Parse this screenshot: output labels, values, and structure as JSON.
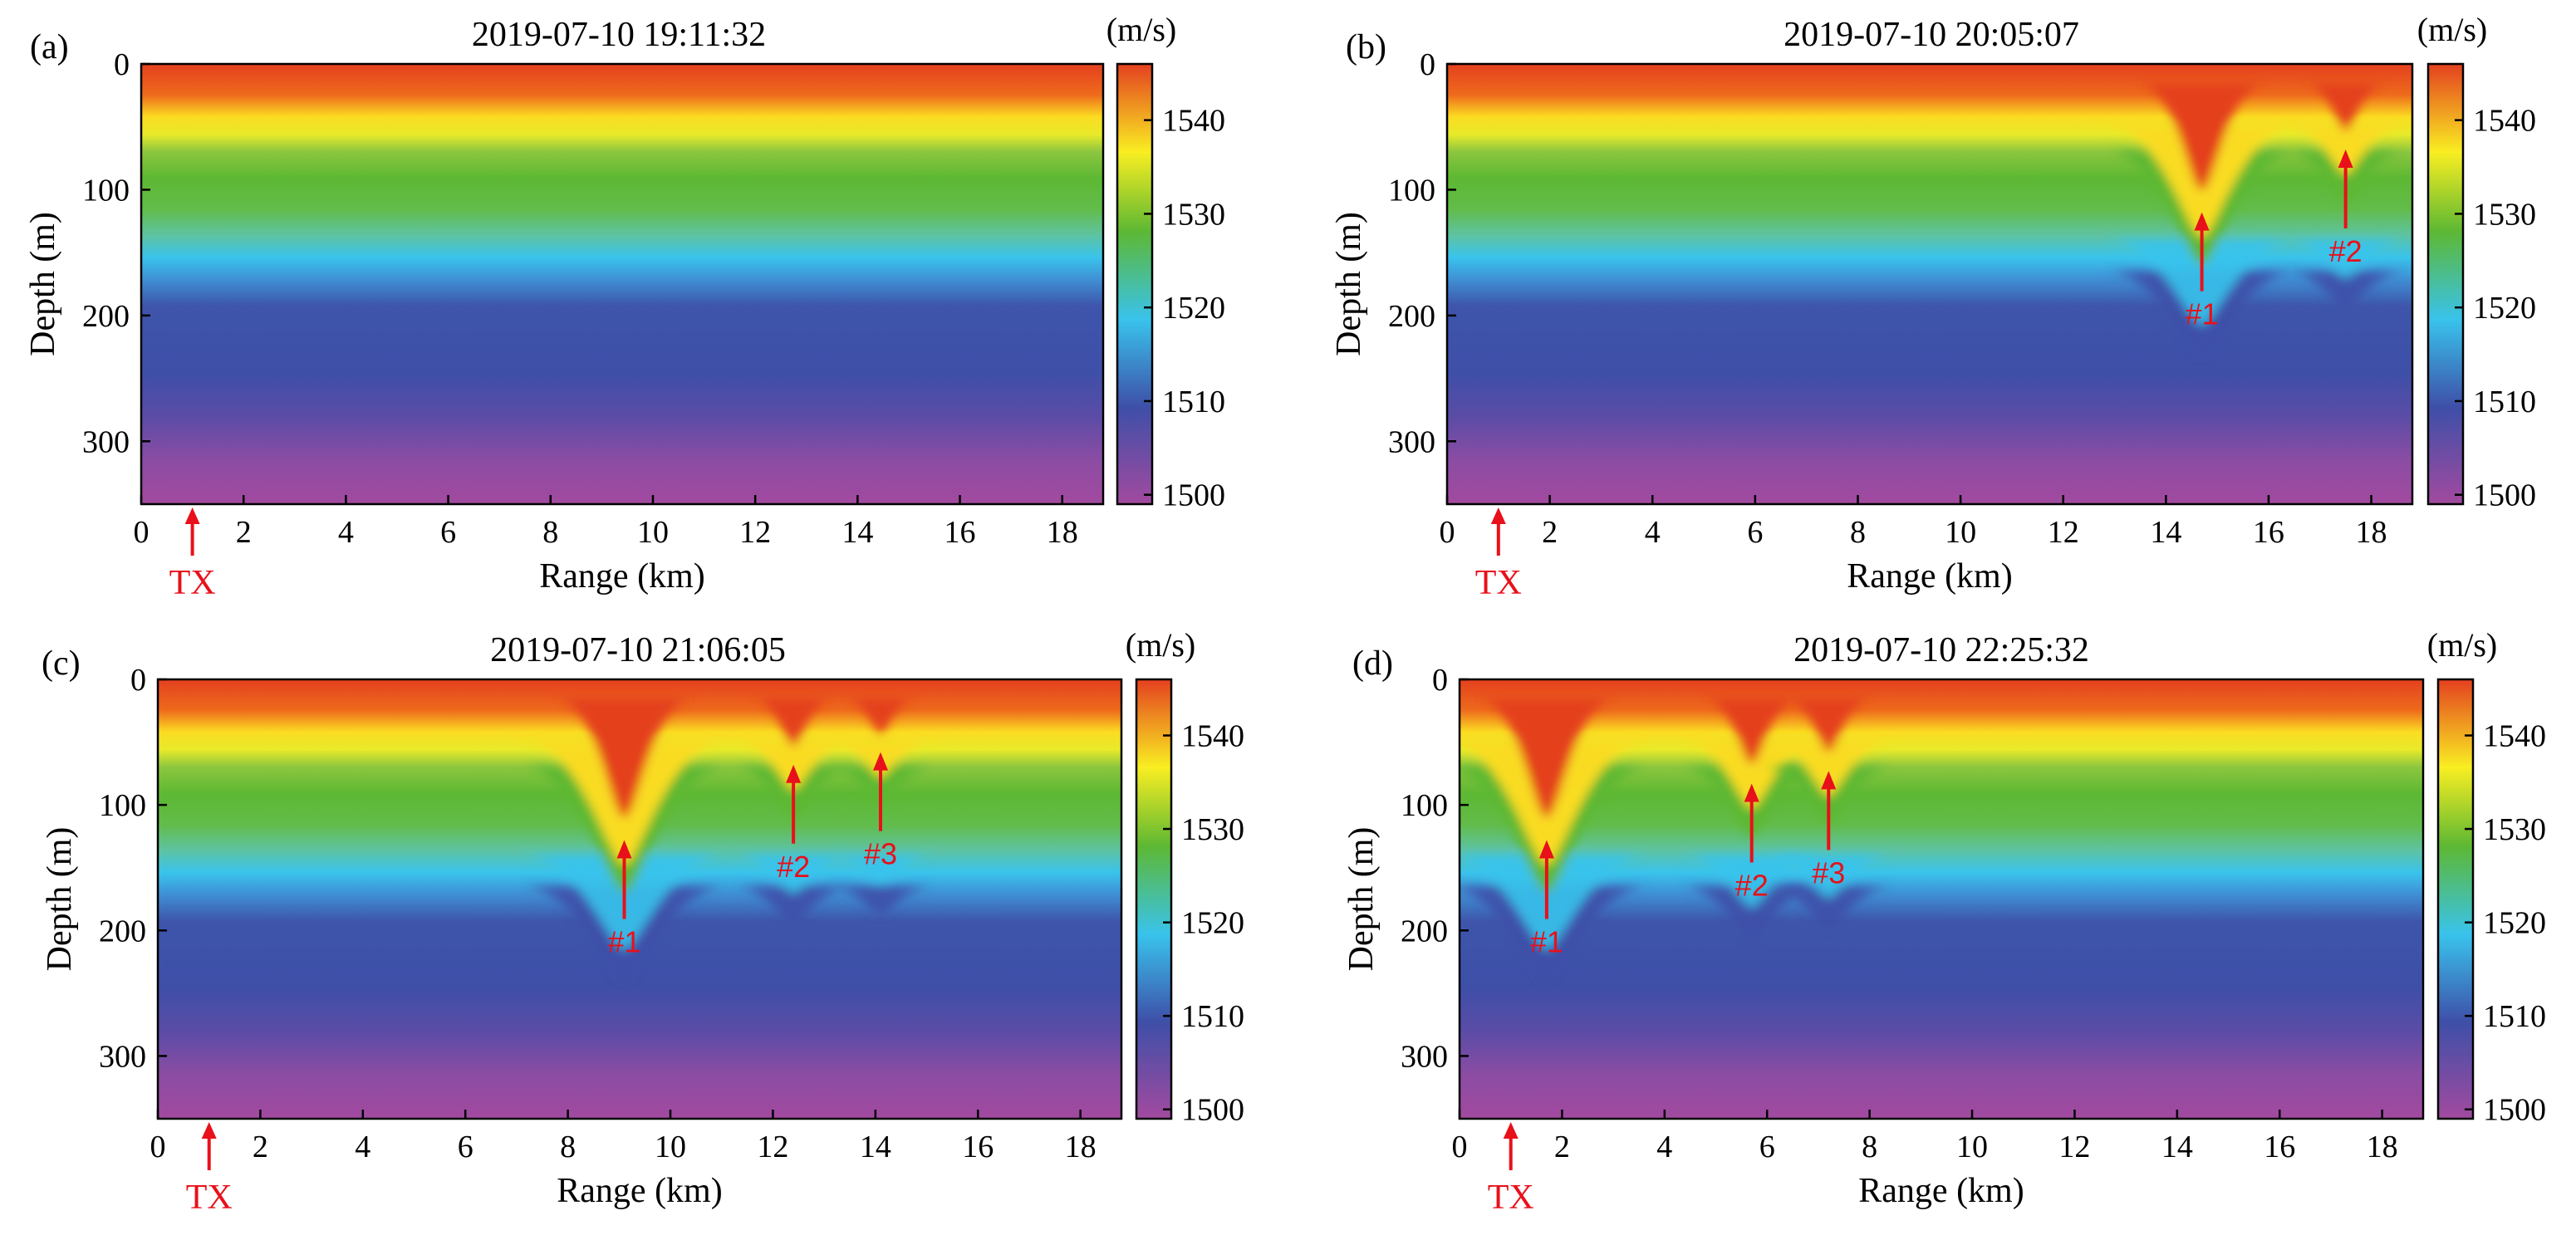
{
  "chart_data": [
    {
      "type": "heatmap",
      "panel_label": "(a)",
      "title": "2019-07-10 19:11:32",
      "xlabel": "Range (km)",
      "ylabel": "Depth (m)",
      "colorbar_label": "(m/s)",
      "xlim": [
        0,
        18.8
      ],
      "ylim": [
        0,
        350
      ],
      "xticks": [
        "0",
        "2",
        "4",
        "6",
        "8",
        "10",
        "12",
        "14",
        "16",
        "18"
      ],
      "yticks": [
        "0",
        "100",
        "200",
        "300"
      ],
      "colorbar_ticks": [
        "1500",
        "1510",
        "1520",
        "1530",
        "1540"
      ],
      "clim": [
        1499,
        1546
      ],
      "transmitter": {
        "label": "TX",
        "range_km": 1.0
      },
      "waves": []
    },
    {
      "type": "heatmap",
      "panel_label": "(b)",
      "title": "2019-07-10 20:05:07",
      "xlabel": "Range (km)",
      "ylabel": "Depth (m)",
      "colorbar_label": "(m/s)",
      "xlim": [
        0,
        18.8
      ],
      "ylim": [
        0,
        350
      ],
      "xticks": [
        "0",
        "2",
        "4",
        "6",
        "8",
        "10",
        "12",
        "14",
        "16",
        "18"
      ],
      "yticks": [
        "0",
        "100",
        "200",
        "300"
      ],
      "colorbar_ticks": [
        "1500",
        "1510",
        "1520",
        "1530",
        "1540"
      ],
      "clim": [
        1499,
        1546
      ],
      "transmitter": {
        "label": "TX",
        "range_km": 1.0
      },
      "waves": [
        {
          "label": "#1",
          "range_km": 14.7,
          "amplitude_m": 90
        },
        {
          "label": "#2",
          "range_km": 17.5,
          "amplitude_m": 40
        }
      ]
    },
    {
      "type": "heatmap",
      "panel_label": "(c)",
      "title": "2019-07-10 21:06:05",
      "xlabel": "Range (km)",
      "ylabel": "Depth (m)",
      "colorbar_label": "(m/s)",
      "xlim": [
        0,
        18.8
      ],
      "ylim": [
        0,
        350
      ],
      "xticks": [
        "0",
        "2",
        "4",
        "6",
        "8",
        "10",
        "12",
        "14",
        "16",
        "18"
      ],
      "yticks": [
        "0",
        "100",
        "200",
        "300"
      ],
      "colorbar_ticks": [
        "1500",
        "1510",
        "1520",
        "1530",
        "1540"
      ],
      "clim": [
        1499,
        1546
      ],
      "transmitter": {
        "label": "TX",
        "range_km": 1.0
      },
      "waves": [
        {
          "label": "#1",
          "range_km": 9.1,
          "amplitude_m": 100
        },
        {
          "label": "#2",
          "range_km": 12.4,
          "amplitude_m": 40
        },
        {
          "label": "#3",
          "range_km": 14.1,
          "amplitude_m": 30
        }
      ]
    },
    {
      "type": "heatmap",
      "panel_label": "(d)",
      "title": "2019-07-10 22:25:32",
      "xlabel": "Range (km)",
      "ylabel": "Depth (m)",
      "colorbar_label": "(m/s)",
      "xlim": [
        0,
        18.8
      ],
      "ylim": [
        0,
        350
      ],
      "xticks": [
        "0",
        "2",
        "4",
        "6",
        "8",
        "10",
        "12",
        "14",
        "16",
        "18"
      ],
      "yticks": [
        "0",
        "100",
        "200",
        "300"
      ],
      "colorbar_ticks": [
        "1500",
        "1510",
        "1520",
        "1530",
        "1540"
      ],
      "clim": [
        1499,
        1546
      ],
      "transmitter": {
        "label": "TX",
        "range_km": 1.0
      },
      "waves": [
        {
          "label": "#1",
          "range_km": 1.7,
          "amplitude_m": 100
        },
        {
          "label": "#2",
          "range_km": 5.7,
          "amplitude_m": 55
        },
        {
          "label": "#3",
          "range_km": 7.2,
          "amplitude_m": 45
        }
      ]
    }
  ],
  "colors": {
    "annotation": "#e8101a",
    "colormap": [
      "#a24a9f",
      "#3e4fa8",
      "#39c3ec",
      "#5db833",
      "#f9ee22",
      "#e4401f"
    ]
  }
}
